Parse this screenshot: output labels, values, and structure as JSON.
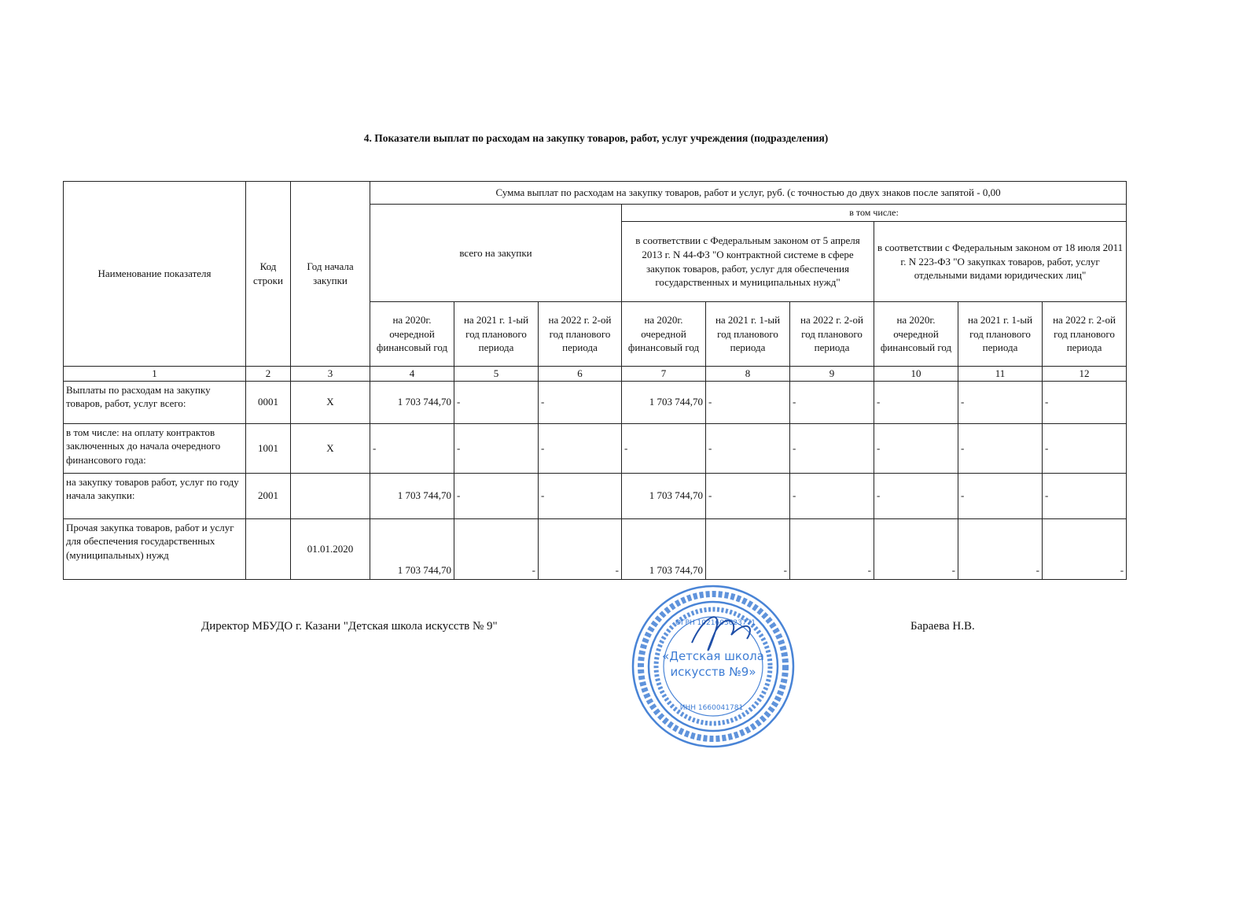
{
  "title": "4. Показатели выплат по расходам на закупку товаров, работ, услуг учреждения (подразделения)",
  "header": {
    "name": "Наименование показателя",
    "code": "Код строки",
    "year": "Год начала закупки",
    "sum": "Сумма выплат по расходам на закупку товаров, работ и услуг, руб. (с точностью до двух знаков после запятой - 0,00",
    "total": "всего на закупки",
    "including": "в том числе:",
    "law44": "в соответствии с Федеральным законом от 5 апреля 2013 г. N 44-ФЗ \"О контрактной системе в сфере закупок товаров, работ, услуг для обеспечения государственных и муниципальных нужд\"",
    "law223": "в соответствии с Федеральным законом от 18 июля 2011 г. N 223-ФЗ \"О закупках товаров, работ, услуг отдельными видами юридических лиц\"",
    "periods": [
      "на 2020г. очередной финансовый год",
      "на 2021 г. 1-ый год планового периода",
      "на 2022 г. 2-ой год планового периода"
    ],
    "numbers": [
      "1",
      "2",
      "3",
      "4",
      "5",
      "6",
      "7",
      "8",
      "9",
      "10",
      "11",
      "12"
    ]
  },
  "rows": [
    {
      "name": "Выплаты по расходам на закупку товаров, работ, услуг всего:",
      "code": "0001",
      "year": "X",
      "values": [
        "1 703 744,70",
        "-",
        "-",
        "1 703 744,70",
        "-",
        "-",
        "-",
        "-",
        "-"
      ]
    },
    {
      "name": "в том числе: на оплату контрактов заключенных до начала очередного финансового года:",
      "code": "1001",
      "year": "X",
      "values": [
        "-",
        "-",
        "-",
        "-",
        "-",
        "-",
        "-",
        "-",
        "-"
      ]
    },
    {
      "name": "на закупку товаров работ, услуг по году начала закупки:",
      "code": "2001",
      "year": "",
      "values": [
        "1 703 744,70",
        "-",
        "-",
        "1 703 744,70",
        "-",
        "-",
        "-",
        "-",
        "-"
      ]
    },
    {
      "name": "Прочая закупка товаров, работ и услуг для обеспечения государственных (муниципальных) нужд",
      "code": "",
      "year": "01.01.2020",
      "values": [
        "1 703 744,70",
        "-",
        "-",
        "1 703 744,70",
        "-",
        "-",
        "-",
        "-",
        "-"
      ]
    }
  ],
  "signature": {
    "position": "Директор МБУДО г. Казани \"Детская школа искусств № 9\"",
    "name": "Бараева Н.В."
  },
  "stamp": {
    "center": "«Детская школа искусств №9»",
    "outer": "ТР КАЗАН ШӘҺӘРЕНЕҢ ӨСТӘМӘ БЕЛЕМ БИРҮ МУНИЦИПАЛЬ БЮДЖЕТ УЧРЕЖДЕНИЕСЕ",
    "inner": "МУНИЦИПАЛЬНОЕ БЮДЖЕТНОЕ УЧРЕЖДЕНИЕ ДОПОЛНИТЕЛЬНОГО ОБРАЗОВАНИЯ г.КАЗАНИ РТ",
    "ogrn": "ОГРН 1021603623771",
    "inn": "ИНН 1660041781",
    "color": "#2a6fd0"
  }
}
